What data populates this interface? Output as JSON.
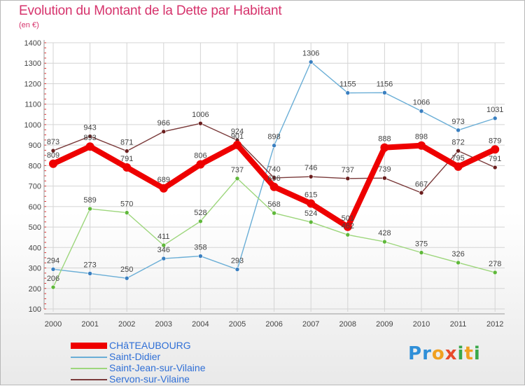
{
  "chart_data": {
    "type": "line",
    "title": "Evolution du Montant de la Dette par Habitant",
    "ylabel": "(en €)",
    "ylim": [
      100,
      1400
    ],
    "yticks": [
      100,
      200,
      300,
      400,
      500,
      600,
      700,
      800,
      900,
      1000,
      1100,
      1200,
      1300,
      1400
    ],
    "categories": [
      "2000",
      "2001",
      "2002",
      "2003",
      "2004",
      "2005",
      "2006",
      "2007",
      "2008",
      "2009",
      "2010",
      "2011",
      "2012"
    ],
    "series": [
      {
        "key": "sdidier",
        "name": "Saint-Didier",
        "color": "#6aaed6",
        "point": "#3a7fc0",
        "thick": false,
        "values": [
          294,
          273,
          250,
          346,
          358,
          293,
          898,
          1306,
          1155,
          1156,
          1066,
          973,
          1031
        ],
        "labels": [
          "294",
          "273",
          "250",
          "346",
          "358",
          "293",
          "898",
          "1306",
          "1155",
          "1156",
          "1066",
          "973",
          "1031"
        ]
      },
      {
        "key": "sjean",
        "name": "Saint-Jean-sur-Vilaine",
        "color": "#9dd67c",
        "point": "#5fb83a",
        "thick": false,
        "values": [
          206,
          589,
          570,
          411,
          528,
          737,
          568,
          524,
          462,
          428,
          375,
          326,
          278
        ],
        "labels": [
          "206",
          "589",
          "570",
          "411",
          "528",
          "737",
          "568",
          "524",
          "462",
          "428",
          "375",
          "326",
          "278"
        ]
      },
      {
        "key": "servon",
        "name": "Servon-sur-Vilaine",
        "color": "#7a3a3a",
        "point": "#6b1e1e",
        "thick": false,
        "values": [
          873,
          943,
          871,
          966,
          1006,
          924,
          740,
          746,
          737,
          739,
          667,
          872,
          791
        ],
        "labels": [
          "873",
          "943",
          "871",
          "966",
          "1006",
          "924",
          "740",
          "746",
          "737",
          "739",
          "667",
          "872",
          "791"
        ]
      },
      {
        "key": "chat",
        "name": "CHâTEAUBOURG",
        "color": "#ee0000",
        "point": "#ee0000",
        "thick": true,
        "values": [
          809,
          893,
          791,
          689,
          806,
          901,
          696,
          615,
          501,
          888,
          898,
          795,
          879
        ],
        "labels": [
          "809",
          "893",
          "791",
          "689",
          "806",
          "901",
          "696",
          "615",
          "501",
          "888",
          "898",
          "795",
          "879"
        ]
      }
    ],
    "legend_order": [
      "chat",
      "sdidier",
      "sjean",
      "servon"
    ],
    "legend_position": "bottom-left",
    "grid": true
  },
  "branding": {
    "logo_letters": [
      {
        "ch": "P",
        "color": "#2f8fd8"
      },
      {
        "ch": "r",
        "color": "#2f8fd8"
      },
      {
        "ch": "o",
        "color": "#f0a020"
      },
      {
        "ch": "x",
        "color": "#e84a2a"
      },
      {
        "ch": "i",
        "color": "#3aa84a"
      },
      {
        "ch": "t",
        "color": "#f0a020"
      },
      {
        "ch": "i",
        "color": "#3aa84a"
      }
    ]
  }
}
